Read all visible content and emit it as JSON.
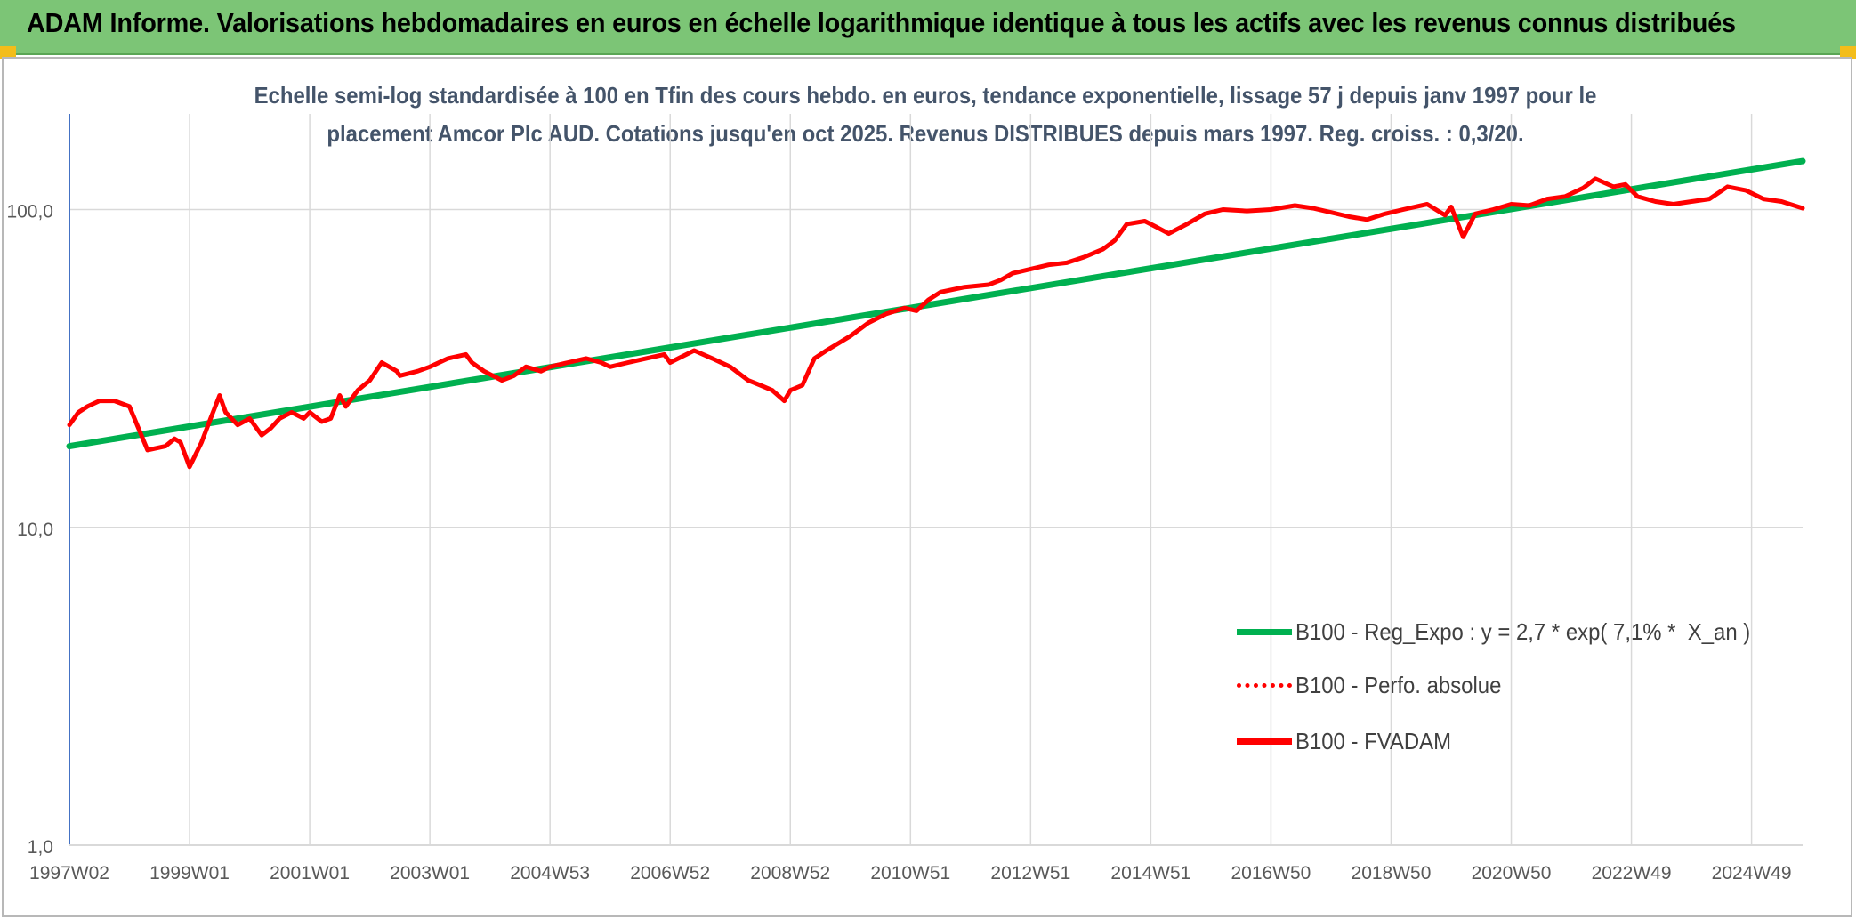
{
  "banner": {
    "title": "ADAM Informe. Valorisations hebdomadaires en euros en échelle logarithmique identique à tous les actifs avec les revenus connus distribués"
  },
  "colors": {
    "banner_bg": "#7cc576",
    "corner_accent": "#f3bd1a",
    "trend_line": "#00b050",
    "price_line": "#ff0000",
    "title_text": "#44546a",
    "grid": "#d9d9d9",
    "axis": "#4472c4"
  },
  "chart_data": {
    "type": "line",
    "title_line1": "Echelle semi-log standardisée à 100 en Tfin des cours hebdo. en euros, tendance exponentielle, lissage 57 j depuis janv 1997 pour le",
    "title_line2": "placement Amcor Plc AUD. Cotations jusqu'en oct 2025. Revenus DISTRIBUES depuis mars 1997. Reg. croiss. : 0,3/20.",
    "y_scale": "log",
    "ylim": [
      1,
      200
    ],
    "y_ticks": [
      "1,0",
      "10,0",
      "100,0"
    ],
    "y_tick_values": [
      1,
      10,
      100
    ],
    "xlim": [
      1997.0,
      2025.85
    ],
    "x_ticks": [
      "1997W02",
      "1999W01",
      "2001W01",
      "2003W01",
      "2004W53",
      "2006W52",
      "2008W52",
      "2010W51",
      "2012W51",
      "2014W51",
      "2016W50",
      "2018W50",
      "2020W50",
      "2022W49",
      "2024W49"
    ],
    "x_tick_values": [
      1997.0,
      1999.0,
      2001.0,
      2003.0,
      2005.0,
      2007.0,
      2009.0,
      2011.0,
      2013.0,
      2015.0,
      2017.0,
      2019.0,
      2021.0,
      2023.0,
      2025.0
    ],
    "grid": true,
    "legend_position": "bottom-right",
    "series": [
      {
        "name": "B100 - Reg_Expo : y = 2,7 * exp( 7,1% *  X_an )",
        "style": "solid",
        "color": "#00b050",
        "x": [
          1997.0,
          2025.85
        ],
        "y": [
          18.0,
          142.0
        ]
      },
      {
        "name": "B100 - Perfo. absolue",
        "style": "dotted",
        "color": "#ff0000",
        "x": [],
        "y": []
      },
      {
        "name": "B100 - FVADAM",
        "style": "solid",
        "color": "#ff0000",
        "x": [
          1997.0,
          1997.15,
          1997.3,
          1997.5,
          1997.75,
          1998.0,
          1998.3,
          1998.6,
          1998.75,
          1998.85,
          1999.0,
          1999.2,
          1999.35,
          1999.5,
          1999.6,
          1999.8,
          2000.0,
          2000.2,
          2000.35,
          2000.5,
          2000.7,
          2000.9,
          2001.0,
          2001.2,
          2001.35,
          2001.5,
          2001.6,
          2001.8,
          2002.0,
          2002.2,
          2002.45,
          2002.5,
          2002.8,
          2003.0,
          2003.3,
          2003.6,
          2003.7,
          2003.9,
          2004.2,
          2004.4,
          2004.6,
          2004.85,
          2005.0,
          2005.3,
          2005.6,
          2005.85,
          2006.0,
          2006.3,
          2006.6,
          2006.9,
          2007.0,
          2007.4,
          2007.7,
          2008.0,
          2008.3,
          2008.5,
          2008.7,
          2008.9,
          2009.0,
          2009.2,
          2009.4,
          2009.6,
          2010.0,
          2010.3,
          2010.6,
          2010.9,
          2011.1,
          2011.3,
          2011.5,
          2011.9,
          2012.3,
          2012.5,
          2012.7,
          2013.0,
          2013.3,
          2013.6,
          2013.9,
          2014.2,
          2014.4,
          2014.6,
          2014.9,
          2015.1,
          2015.3,
          2015.6,
          2015.9,
          2016.2,
          2016.6,
          2017.0,
          2017.4,
          2017.7,
          2018.0,
          2018.3,
          2018.6,
          2018.9,
          2019.2,
          2019.6,
          2019.9,
          2020.0,
          2020.2,
          2020.4,
          2020.7,
          2021.0,
          2021.3,
          2021.6,
          2021.9,
          2022.2,
          2022.4,
          2022.7,
          2022.9,
          2023.1,
          2023.4,
          2023.7,
          2024.0,
          2024.3,
          2024.6,
          2024.9,
          2025.2,
          2025.5,
          2025.85
        ],
        "y": [
          21,
          23,
          24,
          25,
          25,
          24,
          17.5,
          18,
          19,
          18.5,
          15.5,
          18.5,
          22,
          26,
          23,
          21,
          22,
          19.5,
          20.5,
          22,
          23,
          22,
          23,
          21.5,
          22,
          26,
          24,
          27,
          29,
          33,
          31,
          30,
          31,
          32,
          34,
          35,
          33,
          31,
          29,
          30,
          32,
          31,
          32,
          33,
          34,
          33,
          32,
          33,
          34,
          35,
          33,
          36,
          34,
          32,
          29,
          28,
          27,
          25,
          27,
          28,
          34,
          36,
          40,
          44,
          47,
          49,
          48,
          52,
          55,
          57,
          58,
          60,
          63,
          65,
          67,
          68,
          71,
          75,
          80,
          90,
          92,
          88,
          84,
          90,
          97,
          100,
          99,
          100,
          103,
          101,
          98,
          95,
          93,
          97,
          100,
          104,
          96,
          102,
          82,
          97,
          100,
          104,
          103,
          108,
          110,
          117,
          125,
          118,
          120,
          110,
          106,
          104,
          106,
          108,
          118,
          115,
          108,
          106,
          101
        ]
      }
    ]
  }
}
